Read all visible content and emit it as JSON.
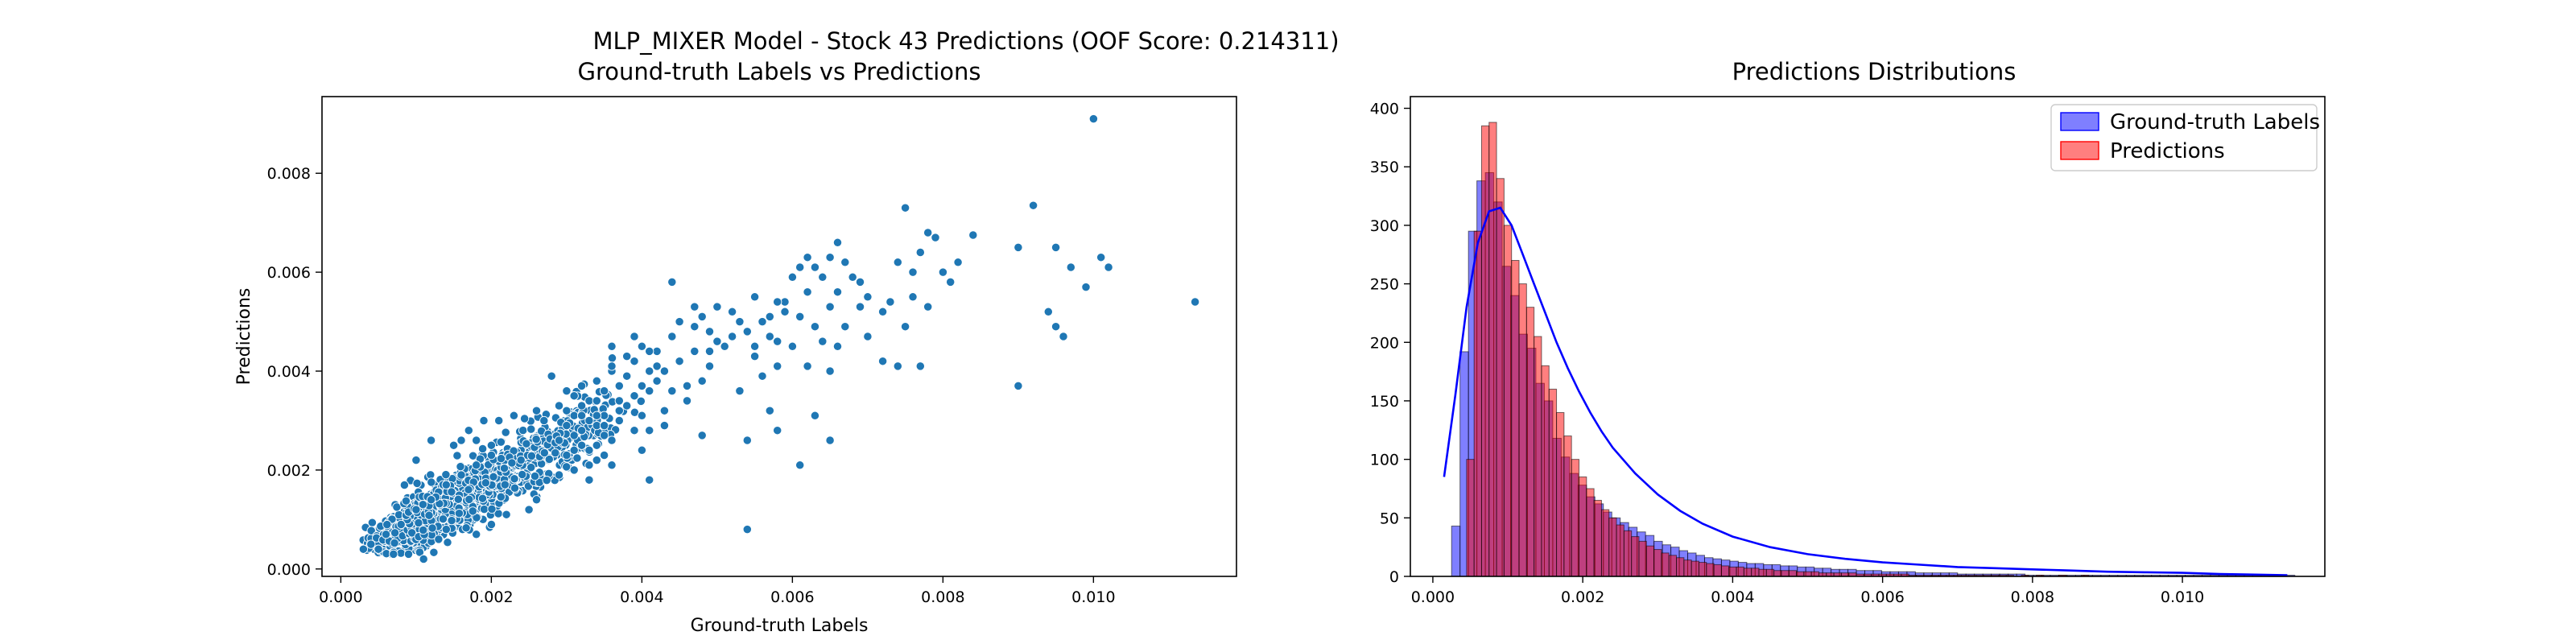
{
  "figure": {
    "suptitle": "MLP_MIXER Model - Stock 43 Predictions (OOF Score: 0.214311)"
  },
  "colors": {
    "scatter": "#1f77b4",
    "scatter_edge": "#ffffff",
    "gt_hist": "#0000ff",
    "pred_hist": "#ff0000",
    "kde": "#0000ff"
  },
  "chart_data": [
    {
      "type": "scatter",
      "title": "Ground-truth Labels vs Predictions",
      "xlabel": "Ground-truth Labels",
      "ylabel": "Predictions",
      "xlim": [
        -0.00025,
        0.0119
      ],
      "ylim": [
        -0.00015,
        0.00955
      ],
      "xticks": [
        0.0,
        0.002,
        0.004,
        0.006,
        0.008,
        0.01
      ],
      "xtick_labels": [
        "0.000",
        "0.002",
        "0.004",
        "0.006",
        "0.008",
        "0.010"
      ],
      "yticks": [
        0.0,
        0.002,
        0.004,
        0.006,
        0.008
      ],
      "ytick_labels": [
        "0.000",
        "0.002",
        "0.004",
        "0.006",
        "0.008"
      ],
      "grid": false,
      "points": [
        [
          0.01,
          0.0091
        ],
        [
          0.01135,
          0.0054
        ],
        [
          0.0102,
          0.0061
        ],
        [
          0.0092,
          0.00735
        ],
        [
          0.0084,
          0.00675
        ],
        [
          0.009,
          0.0065
        ],
        [
          0.0095,
          0.0065
        ],
        [
          0.0097,
          0.0061
        ],
        [
          0.0101,
          0.0063
        ],
        [
          0.0099,
          0.0057
        ],
        [
          0.0094,
          0.0052
        ],
        [
          0.0095,
          0.0049
        ],
        [
          0.0096,
          0.0047
        ],
        [
          0.009,
          0.0037
        ],
        [
          0.0075,
          0.0073
        ],
        [
          0.0078,
          0.0068
        ],
        [
          0.0079,
          0.0067
        ],
        [
          0.0077,
          0.0064
        ],
        [
          0.008,
          0.006
        ],
        [
          0.0076,
          0.006
        ],
        [
          0.0074,
          0.0062
        ],
        [
          0.0082,
          0.0062
        ],
        [
          0.007,
          0.0055
        ],
        [
          0.0073,
          0.0054
        ],
        [
          0.0072,
          0.0052
        ],
        [
          0.0078,
          0.0053
        ],
        [
          0.0075,
          0.0049
        ],
        [
          0.007,
          0.0047
        ],
        [
          0.0074,
          0.0041
        ],
        [
          0.0077,
          0.0041
        ],
        [
          0.0072,
          0.0042
        ],
        [
          0.0081,
          0.0058
        ],
        [
          0.0069,
          0.0053
        ],
        [
          0.0076,
          0.0055
        ],
        [
          0.0066,
          0.0066
        ],
        [
          0.0067,
          0.0062
        ],
        [
          0.0065,
          0.0063
        ],
        [
          0.0062,
          0.0063
        ],
        [
          0.0063,
          0.0061
        ],
        [
          0.0061,
          0.0061
        ],
        [
          0.0068,
          0.0059
        ],
        [
          0.0064,
          0.0059
        ],
        [
          0.006,
          0.0059
        ],
        [
          0.0062,
          0.0056
        ],
        [
          0.0066,
          0.0056
        ],
        [
          0.0059,
          0.0054
        ],
        [
          0.0065,
          0.0053
        ],
        [
          0.0063,
          0.0049
        ],
        [
          0.0067,
          0.0049
        ],
        [
          0.0061,
          0.0051
        ],
        [
          0.0064,
          0.0046
        ],
        [
          0.006,
          0.0045
        ],
        [
          0.0062,
          0.0041
        ],
        [
          0.0066,
          0.0045
        ],
        [
          0.0065,
          0.004
        ],
        [
          0.0058,
          0.0041
        ],
        [
          0.0061,
          0.0021
        ],
        [
          0.0065,
          0.0026
        ],
        [
          0.0063,
          0.0031
        ],
        [
          0.0069,
          0.0058
        ],
        [
          0.0054,
          0.0008
        ],
        [
          0.0054,
          0.0026
        ],
        [
          0.0057,
          0.0032
        ],
        [
          0.0058,
          0.0028
        ],
        [
          0.0053,
          0.0036
        ],
        [
          0.0056,
          0.0039
        ],
        [
          0.0055,
          0.0045
        ],
        [
          0.0052,
          0.0047
        ],
        [
          0.0057,
          0.0051
        ],
        [
          0.0055,
          0.0055
        ],
        [
          0.0056,
          0.005
        ],
        [
          0.0054,
          0.0048
        ],
        [
          0.0058,
          0.0054
        ],
        [
          0.0059,
          0.0052
        ],
        [
          0.0057,
          0.0047
        ],
        [
          0.0053,
          0.005
        ],
        [
          0.0052,
          0.0052
        ],
        [
          0.0055,
          0.0043
        ],
        [
          0.0051,
          0.0045
        ],
        [
          0.0058,
          0.0046
        ],
        [
          0.0049,
          0.0041
        ],
        [
          0.0048,
          0.0038
        ],
        [
          0.0047,
          0.0044
        ],
        [
          0.005,
          0.0046
        ],
        [
          0.0046,
          0.0037
        ],
        [
          0.0049,
          0.0048
        ],
        [
          0.0045,
          0.005
        ],
        [
          0.0048,
          0.0051
        ],
        [
          0.0047,
          0.0049
        ],
        [
          0.005,
          0.0053
        ],
        [
          0.0044,
          0.0058
        ],
        [
          0.0046,
          0.0034
        ],
        [
          0.0043,
          0.004
        ],
        [
          0.0045,
          0.0042
        ],
        [
          0.0044,
          0.0047
        ],
        [
          0.0047,
          0.0053
        ],
        [
          0.0049,
          0.0044
        ],
        [
          0.0048,
          0.0027
        ],
        [
          0.0044,
          0.0036
        ],
        [
          0.0042,
          0.0044
        ],
        [
          0.0041,
          0.0044
        ],
        [
          0.0043,
          0.0032
        ],
        [
          0.004,
          0.0045
        ],
        [
          0.0039,
          0.0042
        ],
        [
          0.0041,
          0.004
        ],
        [
          0.0038,
          0.0039
        ],
        [
          0.004,
          0.0037
        ],
        [
          0.0037,
          0.0037
        ],
        [
          0.0039,
          0.0035
        ],
        [
          0.0041,
          0.0036
        ],
        [
          0.0042,
          0.0041
        ],
        [
          0.0036,
          0.004
        ],
        [
          0.0038,
          0.0043
        ],
        [
          0.004,
          0.0031
        ],
        [
          0.0039,
          0.0028
        ],
        [
          0.0041,
          0.0028
        ],
        [
          0.0038,
          0.0033
        ],
        [
          0.0037,
          0.0032
        ],
        [
          0.004,
          0.0024
        ],
        [
          0.0039,
          0.0047
        ],
        [
          0.0036,
          0.0045
        ],
        [
          0.0042,
          0.0038
        ],
        [
          0.0043,
          0.0029
        ],
        [
          0.0041,
          0.0018
        ],
        [
          0.0035,
          0.0036
        ],
        [
          0.0034,
          0.0038
        ],
        [
          0.0036,
          0.0041
        ],
        [
          0.0037,
          0.0034
        ],
        [
          0.0035,
          0.0031
        ],
        [
          0.0031,
          0.0031
        ],
        [
          0.0032,
          0.0033
        ],
        [
          0.0033,
          0.003
        ],
        [
          0.0031,
          0.0027
        ],
        [
          0.0034,
          0.0029
        ],
        [
          0.0032,
          0.0025
        ],
        [
          0.003,
          0.0029
        ],
        [
          0.0033,
          0.0034
        ],
        [
          0.0034,
          0.0034
        ],
        [
          0.0029,
          0.0026
        ],
        [
          0.0033,
          0.0024
        ],
        [
          0.0035,
          0.0027
        ],
        [
          0.0032,
          0.0028
        ],
        [
          0.0031,
          0.0035
        ],
        [
          0.0029,
          0.0033
        ],
        [
          0.003,
          0.0023
        ],
        [
          0.0034,
          0.0022
        ],
        [
          0.0033,
          0.0018
        ],
        [
          0.0031,
          0.002
        ],
        [
          0.0035,
          0.0023
        ],
        [
          0.0036,
          0.0026
        ],
        [
          0.0032,
          0.0037
        ],
        [
          0.003,
          0.0036
        ],
        [
          0.0028,
          0.0039
        ],
        [
          0.0034,
          0.0025
        ],
        [
          0.0036,
          0.0021
        ],
        [
          0.0037,
          0.003
        ],
        [
          0.0031,
          0.0024
        ],
        [
          0.0033,
          0.0021
        ],
        [
          0.0029,
          0.0019
        ],
        [
          0.0035,
          0.0029
        ],
        [
          0.0032,
          0.0031
        ],
        [
          0.003,
          0.0032
        ],
        [
          0.0034,
          0.0031
        ],
        [
          0.0012,
          0.0026
        ],
        [
          0.0016,
          0.0026
        ],
        [
          0.0018,
          0.0026
        ],
        [
          0.0015,
          0.0025
        ],
        [
          0.002,
          0.0025
        ],
        [
          0.001,
          0.0022
        ],
        [
          0.0017,
          0.0028
        ],
        [
          0.0019,
          0.003
        ],
        [
          0.0021,
          0.003
        ],
        [
          0.0014,
          0.0008
        ],
        [
          0.002,
          0.0009
        ],
        [
          0.0022,
          0.0011
        ],
        [
          0.0018,
          0.0007
        ],
        [
          0.0025,
          0.0012
        ],
        [
          0.0026,
          0.0014
        ],
        [
          0.0023,
          0.0031
        ],
        [
          0.0026,
          0.0032
        ],
        [
          0.0027,
          0.003
        ],
        [
          0.0011,
          0.0002
        ],
        [
          0.0013,
          0.0006
        ],
        [
          0.0007,
          0.0003
        ],
        [
          0.0009,
          0.0003
        ],
        [
          0.0003,
          0.0004
        ],
        [
          0.0005,
          0.0004
        ],
        [
          0.0004,
          0.0005
        ],
        [
          0.0006,
          0.0007
        ],
        [
          0.0008,
          0.0009
        ],
        [
          0.001,
          0.0012
        ],
        [
          0.0012,
          0.0014
        ],
        [
          0.0014,
          0.0017
        ],
        [
          0.0016,
          0.0019
        ],
        [
          0.0018,
          0.0021
        ],
        [
          0.002,
          0.0023
        ]
      ],
      "cloud": [
        {
          "x": 0.00085,
          "y": 0.00075,
          "sx": 0.00028,
          "sy": 0.00026,
          "n": 430
        },
        {
          "x": 0.00135,
          "y": 0.00125,
          "sx": 0.00034,
          "sy": 0.00032,
          "n": 460
        },
        {
          "x": 0.00195,
          "y": 0.00175,
          "sx": 0.00036,
          "sy": 0.00034,
          "n": 340
        },
        {
          "x": 0.00255,
          "y": 0.00225,
          "sx": 0.00038,
          "sy": 0.00038,
          "n": 170
        },
        {
          "x": 0.0031,
          "y": 0.00275,
          "sx": 0.00042,
          "sy": 0.00045,
          "n": 90
        }
      ]
    },
    {
      "type": "histogram",
      "title": "Predictions Distributions",
      "xlim": [
        -0.0003,
        0.0119
      ],
      "ylim": [
        0,
        410
      ],
      "xticks": [
        0.0,
        0.002,
        0.004,
        0.006,
        0.008,
        0.01
      ],
      "xtick_labels": [
        "0.000",
        "0.002",
        "0.004",
        "0.006",
        "0.008",
        "0.010"
      ],
      "yticks": [
        0,
        50,
        100,
        150,
        200,
        250,
        300,
        350,
        400
      ],
      "ytick_labels": [
        "0",
        "50",
        "100",
        "150",
        "200",
        "250",
        "300",
        "350",
        "400"
      ],
      "legend_position": "top-right",
      "series": [
        {
          "name": "Ground-truth Labels",
          "bin_start": 0.00025,
          "bin_width": 0.0001125,
          "counts": [
            43,
            192,
            295,
            338,
            345,
            320,
            265,
            240,
            207,
            195,
            165,
            150,
            118,
            102,
            88,
            78,
            68,
            62,
            55,
            50,
            46,
            42,
            38,
            35,
            30,
            27,
            25,
            22,
            20,
            18,
            16,
            15,
            14,
            13,
            12,
            11,
            11,
            10,
            10,
            9,
            9,
            8,
            8,
            7,
            7,
            6,
            6,
            6,
            5,
            5,
            5,
            4,
            4,
            4,
            4,
            3,
            3,
            3,
            3,
            3,
            2,
            2,
            2,
            2,
            2,
            2,
            2,
            2,
            1,
            1,
            1,
            1,
            1,
            1,
            1,
            1,
            1,
            1,
            1,
            1,
            1,
            1,
            1,
            1,
            1,
            1,
            1,
            1,
            1,
            1,
            1,
            1,
            1,
            1,
            1,
            1,
            1,
            1,
            1,
            1
          ]
        },
        {
          "name": "Predictions",
          "bin_start": 0.00045,
          "bin_width": 0.0001,
          "counts": [
            100,
            295,
            385,
            388,
            340,
            300,
            270,
            250,
            230,
            205,
            180,
            160,
            140,
            120,
            100,
            85,
            75,
            65,
            57,
            50,
            44,
            39,
            34,
            30,
            26,
            23,
            20,
            18,
            16,
            14,
            13,
            12,
            11,
            10,
            9,
            8,
            8,
            7,
            7,
            6,
            6,
            5,
            5,
            5,
            4,
            4,
            4,
            3,
            3,
            3,
            3,
            3,
            2,
            2,
            2,
            2,
            2,
            2,
            2,
            1,
            1,
            1,
            1,
            1,
            1,
            1,
            1,
            1,
            1,
            1,
            1,
            1,
            1,
            0,
            1,
            0,
            1,
            0,
            0,
            1,
            0,
            0,
            1,
            0,
            0
          ]
        }
      ],
      "kde": {
        "x": [
          0.00015,
          0.0003,
          0.00045,
          0.0006,
          0.00075,
          0.0009,
          0.00105,
          0.0012,
          0.00135,
          0.0015,
          0.00165,
          0.0018,
          0.00195,
          0.0021,
          0.00225,
          0.0024,
          0.0027,
          0.003,
          0.0033,
          0.0036,
          0.004,
          0.0045,
          0.005,
          0.0055,
          0.006,
          0.0065,
          0.007,
          0.0075,
          0.008,
          0.0085,
          0.009,
          0.0095,
          0.01,
          0.0105,
          0.0114
        ],
        "y": [
          85,
          155,
          230,
          285,
          312,
          315,
          300,
          275,
          250,
          225,
          200,
          178,
          158,
          140,
          124,
          110,
          88,
          70,
          56,
          45,
          34,
          25,
          19,
          15,
          12,
          10,
          8,
          7,
          6,
          5,
          4,
          3.5,
          3,
          2,
          1
        ]
      }
    }
  ]
}
